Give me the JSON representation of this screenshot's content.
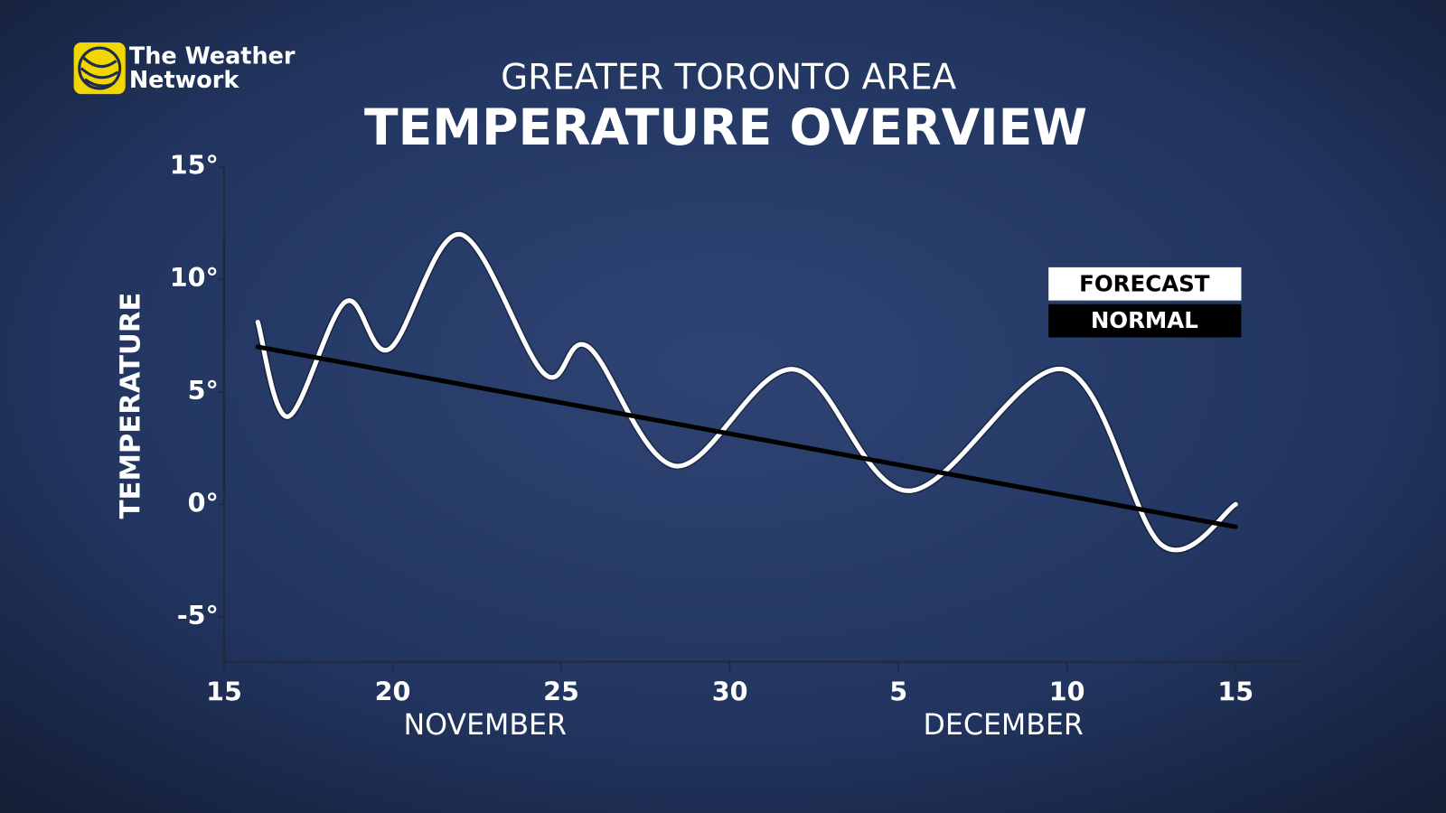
{
  "logo": [
    "The Weather",
    "Network"
  ],
  "chart_data": {
    "type": "line",
    "title": "GREATER TORONTO AREA",
    "subtitle": "TEMPERATURE OVERVIEW",
    "ylabel": "TEMPERATURE",
    "x_group_labels": [
      "NOVEMBER",
      "DECEMBER"
    ],
    "xlim": [
      0,
      32
    ],
    "xticks": [
      {
        "value": 0,
        "label": "15"
      },
      {
        "value": 5,
        "label": "20"
      },
      {
        "value": 10,
        "label": "25"
      },
      {
        "value": 15,
        "label": "30"
      },
      {
        "value": 20,
        "label": "5"
      },
      {
        "value": 25,
        "label": "10"
      },
      {
        "value": 30,
        "label": "15"
      }
    ],
    "ylim": [
      -7,
      15
    ],
    "yticks": [
      {
        "value": 15,
        "label": "15°"
      },
      {
        "value": 10,
        "label": "10°"
      },
      {
        "value": 5,
        "label": "5°"
      },
      {
        "value": 0,
        "label": "0°"
      },
      {
        "value": -5,
        "label": "-5°"
      }
    ],
    "series": [
      {
        "name": "FORECAST",
        "color": "#ffffff",
        "x": [
          1.0,
          1.9,
          3.6,
          4.9,
          7.0,
          9.5,
          10.8,
          13.4,
          16.9,
          20.3,
          24.9,
          27.8,
          30.0
        ],
        "values": [
          8.1,
          3.9,
          9.0,
          6.9,
          12.0,
          5.8,
          7.0,
          1.7,
          6.0,
          0.6,
          6.0,
          -1.8,
          0.0
        ]
      },
      {
        "name": "NORMAL",
        "color": "#000000",
        "x": [
          1,
          30
        ],
        "values": [
          7.0,
          -1.0
        ]
      }
    ]
  }
}
